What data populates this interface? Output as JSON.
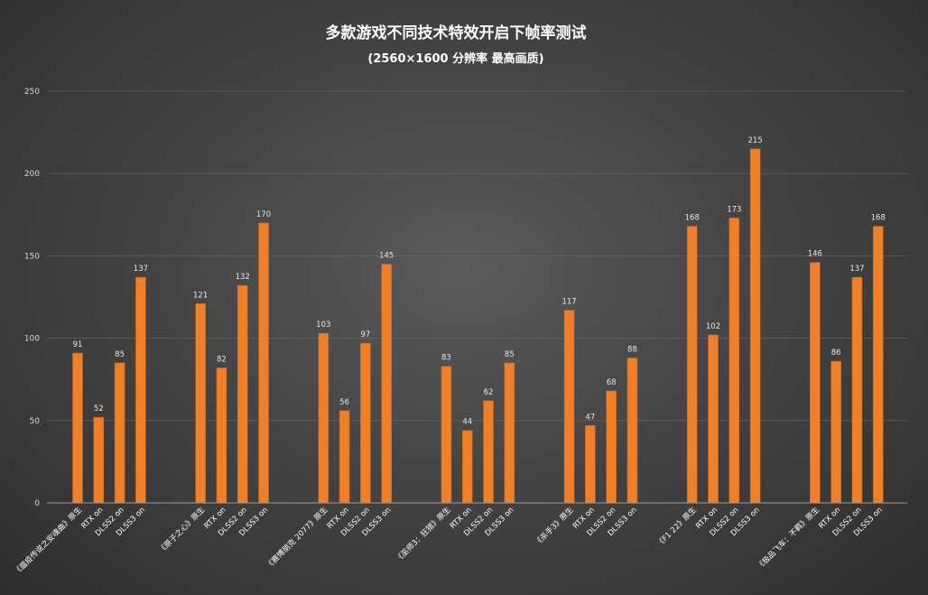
{
  "chart_data": {
    "type": "bar",
    "title": "多款游戏不同技术特效开启下帧率测试",
    "subtitle": "(2560×1600 分辨率 最高画质)",
    "ylim": [
      0,
      250
    ],
    "yticks": [
      0,
      50,
      100,
      150,
      200,
      250
    ],
    "grid": true,
    "bar_color": "#f07f2a",
    "groups": [
      {
        "game": "《瘟疫传说之安魂曲》",
        "labels": [
          "《瘟疫传说之安魂曲》原生",
          "RTX on",
          "DLSS2 on",
          "DLSS3 on"
        ],
        "values": [
          91,
          52,
          85,
          137
        ]
      },
      {
        "game": "《原子之心》",
        "labels": [
          "《原子之心》原生",
          "RTX on",
          "DLSS2 on",
          "DLSS3 on"
        ],
        "values": [
          121,
          82,
          132,
          170
        ]
      },
      {
        "game": "《赛博朋克 2077》",
        "labels": [
          "《赛博朋克 2077》原生",
          "RTX on",
          "DLSS2 on",
          "DLSS3 on"
        ],
        "values": [
          103,
          56,
          97,
          145
        ]
      },
      {
        "game": "《巫师3：狂猎》",
        "labels": [
          "《巫师3：狂猎》原生",
          "RTX on",
          "DLSS2 on",
          "DLSS3 on"
        ],
        "values": [
          83,
          44,
          62,
          85
        ]
      },
      {
        "game": "《杀手3》",
        "labels": [
          "《杀手3》原生",
          "RTX on",
          "DLSS2 on",
          "DLSS3 on"
        ],
        "values": [
          117,
          47,
          68,
          88
        ]
      },
      {
        "game": "《F1 22》",
        "labels": [
          "《F1 22》原生",
          "RTX on",
          "DLSS2 on",
          "DLSS3 on"
        ],
        "values": [
          168,
          102,
          173,
          215
        ]
      },
      {
        "game": "《极品飞车：不羁》",
        "labels": [
          "《极品飞车：不羁》原生",
          "RTX on",
          "DLSS2 on",
          "DLSS3 on"
        ],
        "values": [
          146,
          86,
          137,
          168
        ]
      }
    ]
  }
}
